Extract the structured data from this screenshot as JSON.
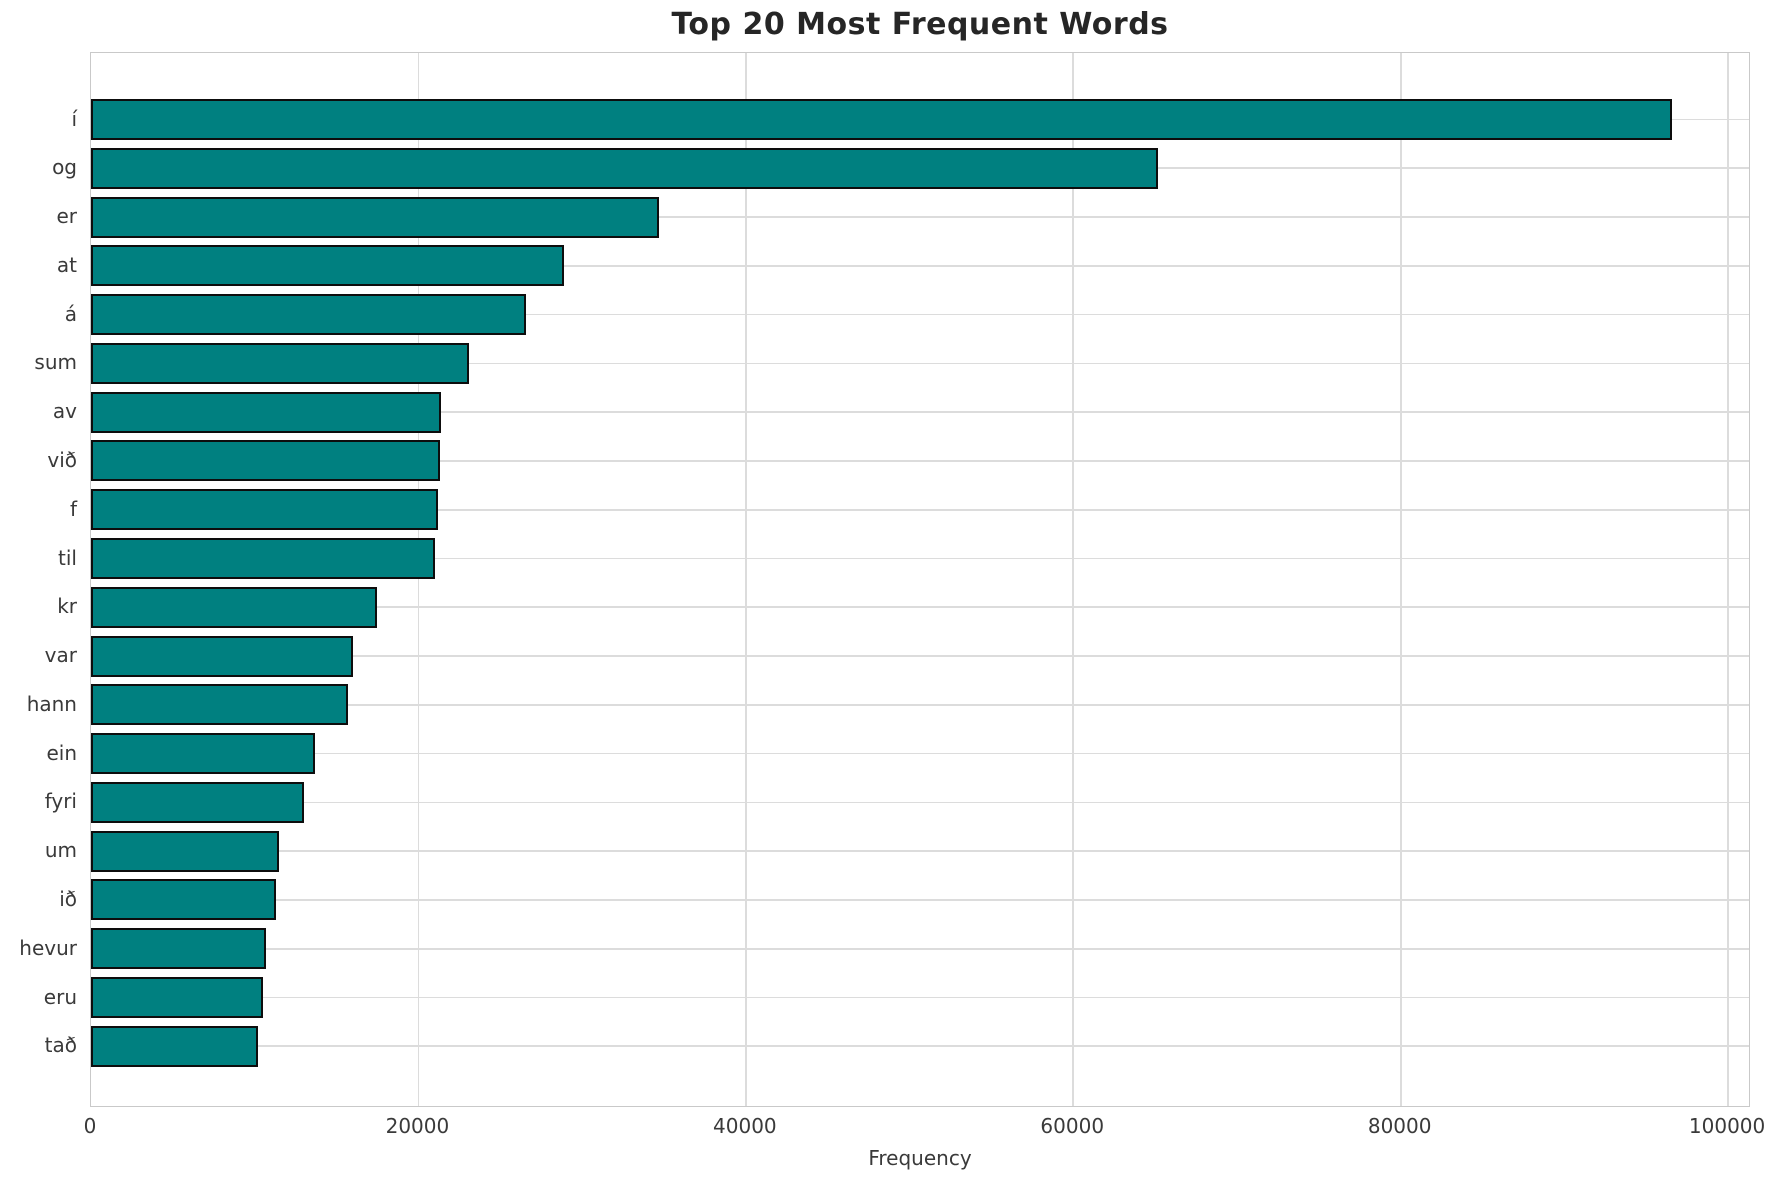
{
  "title": "Top 20 Most Frequent Words",
  "colors": {
    "bar_fill": "#008080",
    "bar_edge": "#0d0d0d",
    "grid": "#dcdcdc",
    "spine": "#c9c9c9",
    "title_text": "#262626",
    "tick_text": "#3a3a3a",
    "background": "#ffffff"
  },
  "chart_data": {
    "type": "bar",
    "orientation": "horizontal",
    "title": "Top 20 Most Frequent Words",
    "xlabel": "Frequency",
    "ylabel": "",
    "categories": [
      "í",
      "og",
      "er",
      "at",
      "á",
      "sum",
      "av",
      "við",
      "f",
      "til",
      "kr",
      "var",
      "hann",
      "ein",
      "fyri",
      "um",
      "ið",
      "hevur",
      "eru",
      "tað"
    ],
    "values": [
      96600,
      65200,
      34700,
      28900,
      26600,
      23100,
      21400,
      21300,
      21200,
      21000,
      17500,
      16000,
      15700,
      13700,
      13000,
      11500,
      11300,
      10700,
      10500,
      10200
    ],
    "xlim": [
      0,
      101400
    ],
    "xticks": [
      0,
      20000,
      40000,
      60000,
      80000,
      100000
    ],
    "xtick_labels": [
      "0",
      "20000",
      "40000",
      "60000",
      "80000",
      "100000"
    ],
    "grid": true,
    "legend": false
  }
}
